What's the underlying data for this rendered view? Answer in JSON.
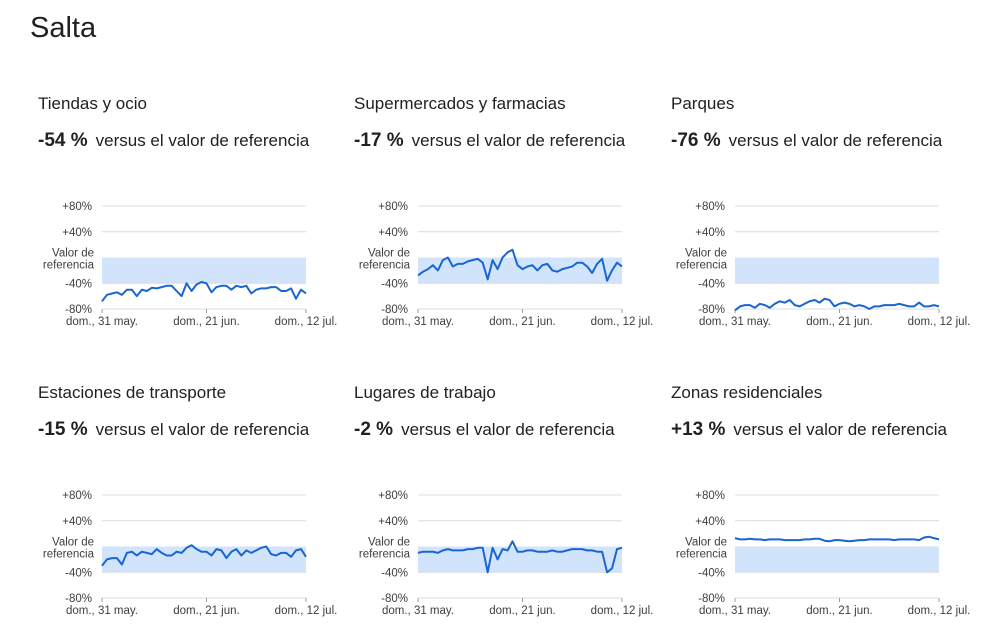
{
  "region": "Salta",
  "stat_suffix": "versus el valor de referencia",
  "axis": {
    "y_ticks": [
      "+80%",
      "+40%",
      "-40%",
      "-80%"
    ],
    "baseline_label_line1": "Valor de",
    "baseline_label_line2": "referencia",
    "x_ticks": [
      "dom., 31 may.",
      "dom., 21 jun.",
      "dom., 12 jul."
    ]
  },
  "colors": {
    "line": "#1a66d1",
    "band": "#d2e3fc",
    "grid": "#dadce0"
  },
  "chart_data": [
    {
      "type": "line",
      "title": "Tiendas y ocio",
      "summary": "-54 %",
      "ylim": [
        -80,
        80
      ],
      "x_ticks": [
        "dom., 31 may.",
        "dom., 21 jun.",
        "dom., 12 jul."
      ],
      "values": [
        -68,
        -58,
        -56,
        -54,
        -58,
        -50,
        -50,
        -60,
        -50,
        -52,
        -47,
        -48,
        -46,
        -44,
        -44,
        -52,
        -60,
        -40,
        -52,
        -42,
        -38,
        -40,
        -54,
        -46,
        -44,
        -44,
        -50,
        -44,
        -46,
        -44,
        -56,
        -50,
        -48,
        -48,
        -46,
        -46,
        -52,
        -52,
        -48,
        -64,
        -50,
        -56
      ]
    },
    {
      "type": "line",
      "title": "Supermercados y farmacias",
      "summary": "-17 %",
      "ylim": [
        -80,
        80
      ],
      "x_ticks": [
        "dom., 31 may.",
        "dom., 21 jun.",
        "dom., 12 jul."
      ],
      "values": [
        -28,
        -22,
        -18,
        -12,
        -20,
        -4,
        0,
        -14,
        -10,
        -10,
        -6,
        -4,
        -2,
        -8,
        -34,
        -4,
        -18,
        0,
        8,
        12,
        -12,
        -18,
        -14,
        -12,
        -20,
        -12,
        -10,
        -20,
        -22,
        -18,
        -16,
        -14,
        -8,
        -8,
        -14,
        -24,
        -10,
        -2,
        -36,
        -20,
        -8,
        -14
      ]
    },
    {
      "type": "line",
      "title": "Parques",
      "summary": "-76 %",
      "ylim": [
        -80,
        80
      ],
      "x_ticks": [
        "dom., 31 may.",
        "dom., 21 jun.",
        "dom., 12 jul."
      ],
      "values": [
        -82,
        -76,
        -74,
        -74,
        -78,
        -72,
        -74,
        -78,
        -72,
        -68,
        -70,
        -66,
        -74,
        -76,
        -72,
        -68,
        -66,
        -70,
        -64,
        -66,
        -76,
        -72,
        -70,
        -72,
        -76,
        -74,
        -76,
        -80,
        -76,
        -76,
        -74,
        -74,
        -74,
        -72,
        -74,
        -76,
        -76,
        -70,
        -76,
        -76,
        -74,
        -76
      ]
    },
    {
      "type": "line",
      "title": "Estaciones de transporte",
      "summary": "-15 %",
      "ylim": [
        -80,
        80
      ],
      "x_ticks": [
        "dom., 31 may.",
        "dom., 21 jun.",
        "dom., 12 jul."
      ],
      "values": [
        -30,
        -20,
        -18,
        -18,
        -28,
        -10,
        -8,
        -14,
        -8,
        -10,
        -12,
        -4,
        -10,
        -14,
        -14,
        -8,
        -10,
        -2,
        2,
        -4,
        -8,
        -8,
        -14,
        -4,
        -6,
        -18,
        -8,
        -4,
        -14,
        -6,
        -10,
        -6,
        -2,
        0,
        -12,
        -14,
        -10,
        -10,
        -16,
        -6,
        -4,
        -16
      ]
    },
    {
      "type": "line",
      "title": "Lugares de trabajo",
      "summary": "-2 %",
      "ylim": [
        -80,
        80
      ],
      "x_ticks": [
        "dom., 31 may.",
        "dom., 21 jun.",
        "dom., 12 jul."
      ],
      "values": [
        -10,
        -8,
        -8,
        -8,
        -10,
        -6,
        -4,
        -6,
        -6,
        -6,
        -4,
        -4,
        -2,
        -2,
        -40,
        -2,
        -20,
        -4,
        -6,
        8,
        -8,
        -8,
        -6,
        -6,
        -8,
        -8,
        -8,
        -6,
        -8,
        -8,
        -6,
        -4,
        -4,
        -4,
        -6,
        -6,
        -8,
        -8,
        -40,
        -34,
        -4,
        -2
      ]
    },
    {
      "type": "line",
      "title": "Zonas residenciales",
      "summary": "+13 %",
      "ylim": [
        -80,
        80
      ],
      "x_ticks": [
        "dom., 31 may.",
        "dom., 21 jun.",
        "dom., 12 jul."
      ],
      "values": [
        13,
        11,
        11,
        12,
        11,
        11,
        10,
        11,
        11,
        11,
        10,
        10,
        10,
        10,
        11,
        11,
        12,
        12,
        9,
        8,
        10,
        10,
        9,
        8,
        9,
        10,
        10,
        11,
        11,
        11,
        11,
        11,
        10,
        11,
        11,
        11,
        11,
        10,
        14,
        15,
        13,
        11
      ]
    }
  ]
}
